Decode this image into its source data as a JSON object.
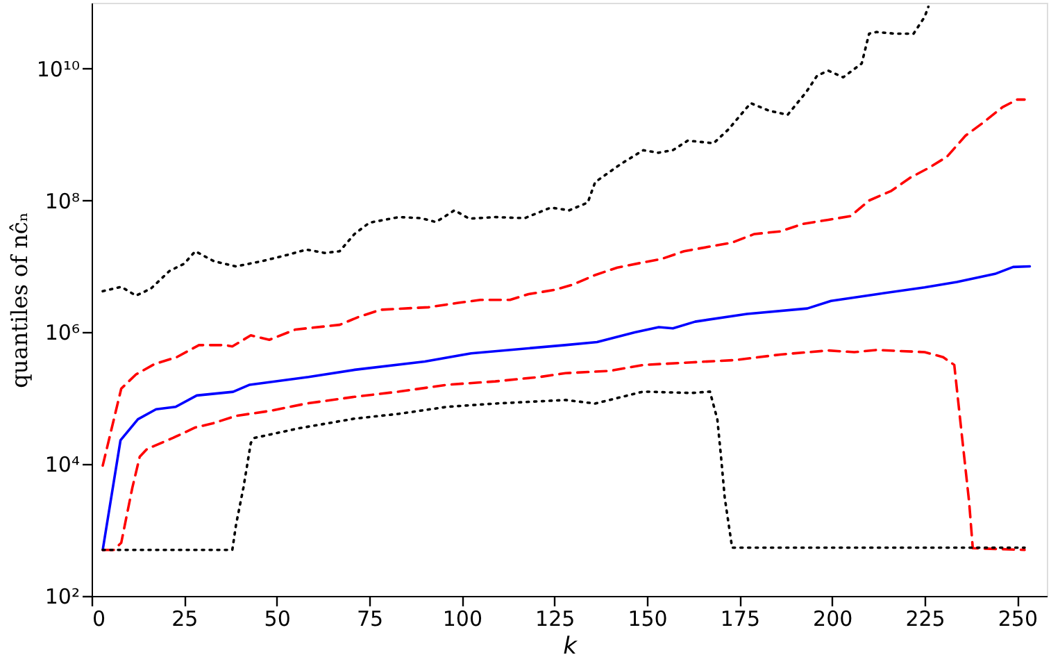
{
  "chart_data": {
    "type": "line",
    "xlabel": "k",
    "ylabel": "quantiles of nĉₙ",
    "log": "y",
    "grid": false,
    "xlim": [
      0,
      258
    ],
    "ylim": [
      100,
      100000000000
    ],
    "xticks": [
      0,
      25,
      50,
      75,
      100,
      125,
      150,
      175,
      200,
      225,
      250
    ],
    "yticks": [
      {
        "value": 100,
        "label": "10²"
      },
      {
        "value": 10000,
        "label": "10⁴"
      },
      {
        "value": 1000000,
        "label": "10⁶"
      },
      {
        "value": 100000000,
        "label": "10⁸"
      },
      {
        "value": 10000000000,
        "label": "10¹⁰"
      }
    ],
    "series": [
      {
        "color": "#000000",
        "line_style": "dotted",
        "x": [
          3,
          8,
          12,
          16,
          21,
          25,
          28,
          33,
          39,
          46,
          53,
          58,
          63,
          67,
          71,
          75,
          83,
          89,
          93,
          98,
          102,
          109,
          117,
          124,
          129,
          134,
          136,
          143,
          149,
          153,
          157,
          161,
          168,
          172,
          178,
          183,
          188,
          193,
          196,
          199,
          203,
          208,
          210,
          212,
          217,
          222,
          225,
          226
        ],
        "values": [
          4200000,
          4900000,
          3600000,
          4600000,
          8500000,
          11000000,
          17000000,
          12000000,
          10000000,
          12000000,
          15000000,
          18000000,
          16000000,
          17000000,
          31000000,
          46000000,
          56000000,
          54000000,
          47000000,
          71000000,
          53000000,
          56000000,
          54000000,
          78000000,
          71000000,
          93000000,
          190000000,
          360000000,
          580000000,
          530000000,
          580000000,
          810000000,
          740000000,
          1200000000,
          3000000000,
          2300000000,
          2000000000,
          4400000000,
          7900000000,
          9300000000,
          7400000000,
          12000000000,
          34000000000,
          36000000000,
          34000000000,
          34000000000,
          61000000000,
          87000000000
        ]
      },
      {
        "color": "#ff0000",
        "line_style": "dashed",
        "x": [
          3,
          8,
          12,
          17,
          23,
          29,
          36,
          38,
          43,
          48,
          55,
          67,
          72,
          78,
          91,
          99,
          105,
          113,
          118,
          125,
          130,
          136,
          142,
          149,
          154,
          160,
          167,
          173,
          179,
          186,
          192,
          199,
          205,
          210,
          216,
          221,
          226,
          231,
          236,
          241,
          246,
          250,
          252
        ],
        "values": [
          9500,
          140000,
          230000,
          330000,
          420000,
          640000,
          640000,
          610000,
          900000,
          770000,
          1100000,
          1300000,
          1700000,
          2200000,
          2400000,
          2800000,
          3100000,
          3100000,
          3800000,
          4400000,
          5300000,
          7400000,
          9600000,
          11500000,
          13000000,
          17000000,
          20000000,
          23000000,
          31000000,
          34000000,
          44000000,
          51000000,
          58000000,
          100000000,
          140000000,
          220000000,
          310000000,
          460000000,
          960000000,
          1550000000,
          2600000000,
          3400000000,
          3400000000
        ]
      },
      {
        "color": "#0000ff",
        "line_style": "solid",
        "x": [
          3,
          7.8,
          12.5,
          17.4,
          22.7,
          28.4,
          38.2,
          42.7,
          58.6,
          71.1,
          90,
          102.5,
          127.8,
          136.5,
          146.7,
          153.2,
          157,
          163,
          177,
          193.3,
          199.7,
          212.2,
          225,
          233.7,
          244,
          248.9,
          253.4
        ],
        "values": [
          500,
          23000,
          48000,
          68000,
          74000,
          110000,
          125000,
          160000,
          210000,
          270000,
          360000,
          480000,
          640000,
          710000,
          1000000,
          1200000,
          1150000,
          1450000,
          1900000,
          2300000,
          3000000,
          3800000,
          4800000,
          5800000,
          7700000,
          9800000,
          10000000
        ]
      },
      {
        "color": "#ff0000",
        "line_style": "dashed",
        "x": [
          3,
          6,
          8,
          11,
          13,
          15,
          22,
          28,
          33,
          39,
          48,
          58,
          71,
          83,
          96,
          109,
          121,
          128,
          140,
          149,
          162,
          174,
          186,
          199,
          206,
          212,
          225,
          230,
          233,
          235,
          237,
          238,
          252
        ],
        "values": [
          500,
          500,
          640,
          4400,
          13000,
          17000,
          25000,
          36000,
          42000,
          54000,
          64000,
          83000,
          105000,
          126000,
          160000,
          180000,
          210000,
          240000,
          260000,
          320000,
          350000,
          380000,
          460000,
          530000,
          500000,
          540000,
          500000,
          420000,
          320000,
          29000,
          2700,
          530,
          500
        ]
      },
      {
        "color": "#000000",
        "line_style": "dotted",
        "x": [
          3,
          38,
          39,
          41,
          43,
          44,
          56,
          71,
          83,
          96,
          109,
          128,
          136,
          149,
          162,
          167,
          169,
          170,
          171,
          173,
          252
        ],
        "values": [
          500,
          500,
          1200,
          4400,
          21000,
          25000,
          35000,
          49000,
          58000,
          74000,
          83000,
          94000,
          83000,
          126000,
          120000,
          126000,
          48000,
          13000,
          3100,
          540,
          540
        ]
      }
    ]
  }
}
